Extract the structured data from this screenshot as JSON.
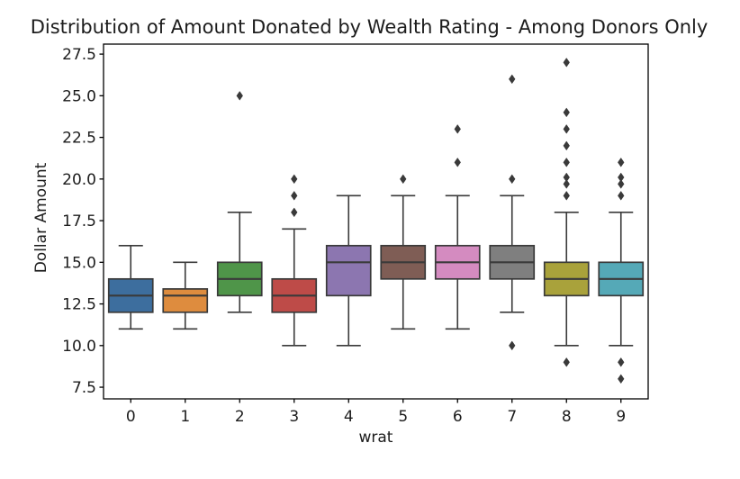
{
  "figure": {
    "background": "#ffffff"
  },
  "chart_data": {
    "type": "boxplot",
    "title": "Distribution of Amount Donated by Wealth Rating - Among Donors Only",
    "xlabel": "wrat",
    "ylabel": "Dollar Amount",
    "categories": [
      "0",
      "1",
      "2",
      "3",
      "4",
      "5",
      "6",
      "7",
      "8",
      "9"
    ],
    "ytick_labels": [
      "7.5",
      "10.0",
      "12.5",
      "15.0",
      "17.5",
      "20.0",
      "22.5",
      "25.0",
      "27.5"
    ],
    "ylim": [
      6.8,
      28.1
    ],
    "grid": false,
    "axis_color": "#000000",
    "edge_color": "#3a3a3a",
    "flier_color": "#3a3a3a",
    "boxes": [
      {
        "category": "0",
        "color": "#3D6E9E",
        "whisker_low": 11,
        "q1": 12,
        "median": 13,
        "q3": 14,
        "whisker_high": 16,
        "outliers": []
      },
      {
        "category": "1",
        "color": "#DE8C3E",
        "whisker_low": 11,
        "q1": 12,
        "median": 13,
        "q3": 13.4,
        "whisker_high": 15,
        "outliers": []
      },
      {
        "category": "2",
        "color": "#4F9549",
        "whisker_low": 12,
        "q1": 13,
        "median": 14,
        "q3": 15,
        "whisker_high": 18,
        "outliers": [
          25
        ]
      },
      {
        "category": "3",
        "color": "#BE4B48",
        "whisker_low": 10,
        "q1": 12,
        "median": 13,
        "q3": 14,
        "whisker_high": 17,
        "outliers": [
          18,
          19,
          20
        ]
      },
      {
        "category": "4",
        "color": "#8C76B0",
        "whisker_low": 10,
        "q1": 13,
        "median": 15,
        "q3": 16,
        "whisker_high": 19,
        "outliers": []
      },
      {
        "category": "5",
        "color": "#7F5D55",
        "whisker_low": 11,
        "q1": 14,
        "median": 15,
        "q3": 16,
        "whisker_high": 19,
        "outliers": [
          20
        ]
      },
      {
        "category": "6",
        "color": "#D48BC0",
        "whisker_low": 11,
        "q1": 14,
        "median": 15,
        "q3": 16,
        "whisker_high": 19,
        "outliers": [
          21,
          23
        ]
      },
      {
        "category": "7",
        "color": "#7F7F7F",
        "whisker_low": 12,
        "q1": 14,
        "median": 15,
        "q3": 16,
        "whisker_high": 19,
        "outliers": [
          10,
          20,
          26
        ]
      },
      {
        "category": "8",
        "color": "#A9A23B",
        "whisker_low": 10,
        "q1": 13,
        "median": 14,
        "q3": 15,
        "whisker_high": 18,
        "outliers": [
          9,
          19,
          19.7,
          20.1,
          21,
          22,
          23,
          24,
          27
        ]
      },
      {
        "category": "9",
        "color": "#55A9B7",
        "whisker_low": 10,
        "q1": 13,
        "median": 14,
        "q3": 15,
        "whisker_high": 18,
        "outliers": [
          8,
          9,
          19,
          19.7,
          20.1,
          21
        ]
      }
    ]
  }
}
